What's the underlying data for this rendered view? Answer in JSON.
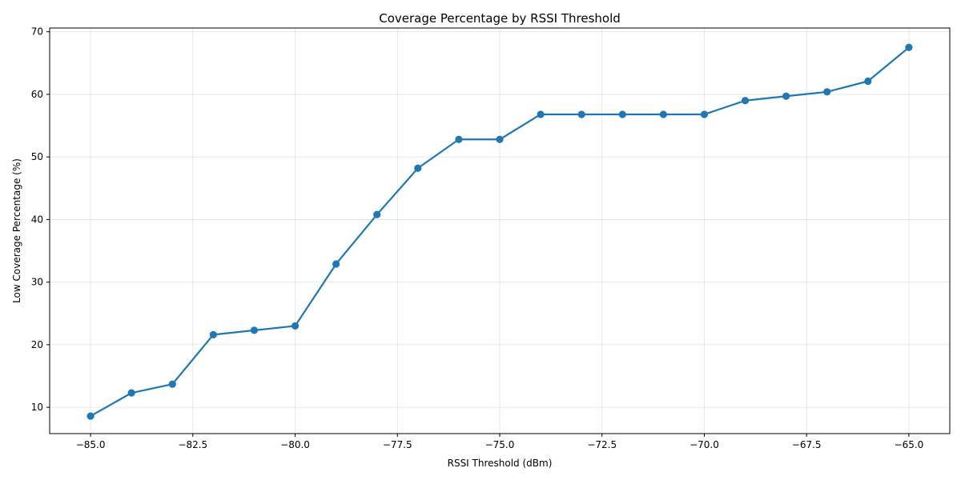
{
  "chart_data": {
    "type": "line",
    "title": "Coverage Percentage by RSSI Threshold",
    "xlabel": "RSSI Threshold (dBm)",
    "ylabel": "Low Coverage Percentage (%)",
    "xlim": [
      -86.0,
      -64.0
    ],
    "ylim": [
      5.8,
      70.6
    ],
    "x_ticks": [
      -85.0,
      -82.5,
      -80.0,
      -77.5,
      -75.0,
      -72.5,
      -70.0,
      -67.5,
      -65.0
    ],
    "x_tick_labels": [
      "−85.0",
      "−82.5",
      "−80.0",
      "−77.5",
      "−75.0",
      "−72.5",
      "−70.0",
      "−67.5",
      "−65.0"
    ],
    "y_ticks": [
      10,
      20,
      30,
      40,
      50,
      60,
      70
    ],
    "y_tick_labels": [
      "10",
      "20",
      "30",
      "40",
      "50",
      "60",
      "70"
    ],
    "grid": true,
    "line_color": "#1f77b4",
    "marker": "circle",
    "series": [
      {
        "x": [
          -85,
          -84,
          -83,
          -82,
          -81,
          -80,
          -79,
          -78,
          -77,
          -76,
          -75,
          -74,
          -73,
          -72,
          -71,
          -70,
          -69,
          -68,
          -67,
          -66,
          -65
        ],
        "y": [
          8.6,
          12.3,
          13.7,
          21.6,
          22.3,
          23.0,
          32.9,
          40.8,
          48.2,
          52.8,
          52.8,
          56.8,
          56.8,
          56.8,
          56.8,
          56.8,
          59.0,
          59.7,
          60.4,
          62.1,
          67.5
        ]
      }
    ]
  }
}
